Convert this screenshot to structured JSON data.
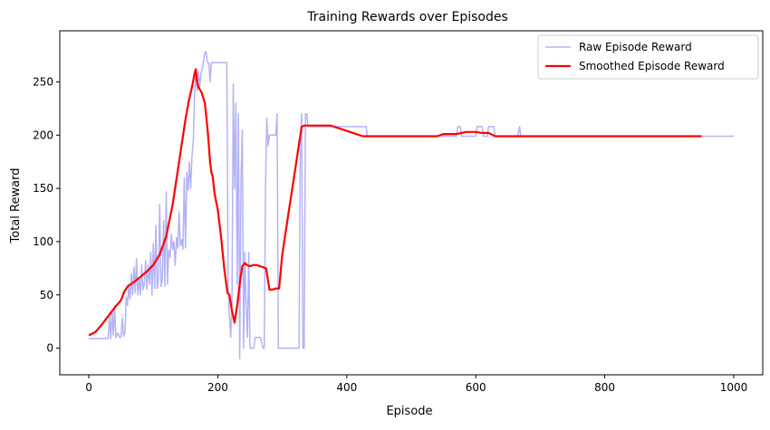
{
  "chart_data": {
    "type": "line",
    "title": "Training Rewards over Episodes",
    "xlabel": "Episode",
    "ylabel": "Total Reward",
    "xlim": [
      -45,
      1045
    ],
    "ylim": [
      -25,
      298
    ],
    "xticks": [
      0,
      200,
      400,
      600,
      800,
      1000
    ],
    "yticks": [
      0,
      50,
      100,
      150,
      200,
      250
    ],
    "grid": false,
    "legend_position": "top-right",
    "series": [
      {
        "name": "Raw Episode Reward",
        "color": "#b3b3f5",
        "style": "thin",
        "points": [
          [
            0,
            9
          ],
          [
            30,
            9
          ],
          [
            32,
            30
          ],
          [
            34,
            9
          ],
          [
            36,
            35
          ],
          [
            38,
            12
          ],
          [
            40,
            40
          ],
          [
            42,
            10
          ],
          [
            45,
            14
          ],
          [
            48,
            10
          ],
          [
            50,
            11
          ],
          [
            52,
            28
          ],
          [
            54,
            11
          ],
          [
            56,
            14
          ],
          [
            58,
            48
          ],
          [
            60,
            40
          ],
          [
            62,
            60
          ],
          [
            64,
            46
          ],
          [
            66,
            70
          ],
          [
            68,
            50
          ],
          [
            70,
            76
          ],
          [
            72,
            52
          ],
          [
            74,
            84
          ],
          [
            76,
            50
          ],
          [
            78,
            66
          ],
          [
            80,
            50
          ],
          [
            82,
            78
          ],
          [
            84,
            55
          ],
          [
            86,
            60
          ],
          [
            88,
            82
          ],
          [
            90,
            55
          ],
          [
            92,
            78
          ],
          [
            94,
            60
          ],
          [
            96,
            90
          ],
          [
            98,
            50
          ],
          [
            100,
            98
          ],
          [
            102,
            56
          ],
          [
            104,
            115
          ],
          [
            106,
            56
          ],
          [
            108,
            64
          ],
          [
            110,
            135
          ],
          [
            112,
            58
          ],
          [
            114,
            64
          ],
          [
            116,
            120
          ],
          [
            118,
            58
          ],
          [
            120,
            147
          ],
          [
            122,
            60
          ],
          [
            124,
            92
          ],
          [
            126,
            85
          ],
          [
            128,
            107
          ],
          [
            130,
            93
          ],
          [
            132,
            100
          ],
          [
            134,
            78
          ],
          [
            136,
            104
          ],
          [
            138,
            94
          ],
          [
            140,
            128
          ],
          [
            142,
            96
          ],
          [
            144,
            102
          ],
          [
            146,
            93
          ],
          [
            148,
            160
          ],
          [
            150,
            94
          ],
          [
            152,
            165
          ],
          [
            154,
            148
          ],
          [
            156,
            175
          ],
          [
            158,
            150
          ],
          [
            160,
            180
          ],
          [
            162,
            195
          ],
          [
            164,
            238
          ],
          [
            166,
            258
          ],
          [
            168,
            242
          ],
          [
            170,
            260
          ],
          [
            172,
            245
          ],
          [
            174,
            258
          ],
          [
            176,
            262
          ],
          [
            178,
            270
          ],
          [
            180,
            278
          ],
          [
            182,
            278
          ],
          [
            184,
            268
          ],
          [
            186,
            268
          ],
          [
            188,
            250
          ],
          [
            190,
            268
          ],
          [
            200,
            268
          ],
          [
            214,
            268
          ],
          [
            216,
            60
          ],
          [
            218,
            30
          ],
          [
            220,
            10
          ],
          [
            222,
            45
          ],
          [
            224,
            248
          ],
          [
            226,
            150
          ],
          [
            228,
            230
          ],
          [
            230,
            60
          ],
          [
            232,
            220
          ],
          [
            234,
            -10
          ],
          [
            236,
            160
          ],
          [
            238,
            205
          ],
          [
            240,
            0
          ],
          [
            242,
            90
          ],
          [
            244,
            40
          ],
          [
            246,
            10
          ],
          [
            248,
            90
          ],
          [
            250,
            0
          ],
          [
            252,
            0
          ],
          [
            256,
            0
          ],
          [
            258,
            10
          ],
          [
            266,
            10
          ],
          [
            270,
            0
          ],
          [
            272,
            0
          ],
          [
            274,
            150
          ],
          [
            276,
            216
          ],
          [
            278,
            190
          ],
          [
            280,
            200
          ],
          [
            290,
            200
          ],
          [
            292,
            220
          ],
          [
            294,
            0
          ],
          [
            326,
            0
          ],
          [
            328,
            190
          ],
          [
            330,
            220
          ],
          [
            332,
            0
          ],
          [
            334,
            0
          ],
          [
            336,
            220
          ],
          [
            338,
            220
          ],
          [
            340,
            208
          ],
          [
            430,
            208
          ],
          [
            432,
            199
          ],
          [
            570,
            199
          ],
          [
            572,
            208
          ],
          [
            576,
            208
          ],
          [
            578,
            199
          ],
          [
            600,
            199
          ],
          [
            602,
            208
          ],
          [
            610,
            208
          ],
          [
            612,
            199
          ],
          [
            618,
            199
          ],
          [
            620,
            208
          ],
          [
            628,
            208
          ],
          [
            630,
            199
          ],
          [
            665,
            199
          ],
          [
            668,
            208
          ],
          [
            670,
            199
          ],
          [
            1000,
            199
          ]
        ]
      },
      {
        "name": "Smoothed Episode Reward",
        "color": "#ff0000",
        "style": "thick",
        "points": [
          [
            0,
            12
          ],
          [
            10,
            15
          ],
          [
            20,
            22
          ],
          [
            30,
            30
          ],
          [
            40,
            38
          ],
          [
            50,
            45
          ],
          [
            55,
            53
          ],
          [
            60,
            58
          ],
          [
            70,
            62
          ],
          [
            80,
            67
          ],
          [
            90,
            72
          ],
          [
            100,
            78
          ],
          [
            110,
            88
          ],
          [
            120,
            105
          ],
          [
            130,
            135
          ],
          [
            140,
            175
          ],
          [
            150,
            215
          ],
          [
            155,
            232
          ],
          [
            160,
            245
          ],
          [
            164,
            258
          ],
          [
            166,
            262
          ],
          [
            168,
            250
          ],
          [
            170,
            245
          ],
          [
            175,
            240
          ],
          [
            180,
            230
          ],
          [
            185,
            200
          ],
          [
            188,
            175
          ],
          [
            190,
            165
          ],
          [
            192,
            162
          ],
          [
            195,
            145
          ],
          [
            200,
            130
          ],
          [
            205,
            105
          ],
          [
            210,
            75
          ],
          [
            215,
            52
          ],
          [
            218,
            50
          ],
          [
            222,
            35
          ],
          [
            226,
            24
          ],
          [
            230,
            40
          ],
          [
            235,
            65
          ],
          [
            238,
            77
          ],
          [
            242,
            80
          ],
          [
            245,
            78
          ],
          [
            250,
            77
          ],
          [
            255,
            78
          ],
          [
            260,
            78
          ],
          [
            265,
            77
          ],
          [
            270,
            76
          ],
          [
            275,
            75
          ],
          [
            280,
            55
          ],
          [
            285,
            55
          ],
          [
            290,
            56
          ],
          [
            295,
            56
          ],
          [
            300,
            88
          ],
          [
            310,
            128
          ],
          [
            320,
            168
          ],
          [
            330,
            208
          ],
          [
            335,
            209
          ],
          [
            375,
            209
          ],
          [
            400,
            204
          ],
          [
            425,
            199
          ],
          [
            540,
            199
          ],
          [
            550,
            201
          ],
          [
            570,
            201
          ],
          [
            585,
            203
          ],
          [
            600,
            203
          ],
          [
            610,
            202
          ],
          [
            620,
            202
          ],
          [
            630,
            199
          ],
          [
            950,
            199
          ]
        ]
      }
    ]
  }
}
